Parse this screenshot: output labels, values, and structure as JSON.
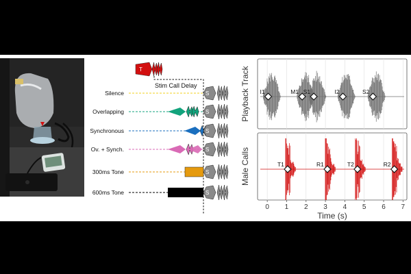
{
  "protocol": {
    "delay_label": "Stim Call Delay",
    "stimulus_mark": "S",
    "conditions": [
      {
        "label": "Silence",
        "color": "#f2d01c",
        "shape": "none"
      },
      {
        "label": "Overlapping",
        "color": "#12a37c",
        "shape": "call-early"
      },
      {
        "label": "Synchronous",
        "color": "#1a6fbf",
        "shape": "call-sync"
      },
      {
        "label": "Ov. + Synch.",
        "color": "#d96ab5",
        "shape": "call-both"
      },
      {
        "label": "300ms Tone",
        "color": "#e59a0e",
        "shape": "tone-300"
      },
      {
        "label": "600ms Tone",
        "color": "#000000",
        "shape": "tone-600"
      }
    ]
  },
  "chart_data": [
    {
      "type": "line",
      "ylabel": "Playback Track",
      "color": "#707070",
      "xlim": [
        -0.5,
        7.2
      ],
      "grid": true,
      "markers": [
        {
          "label": "I1",
          "x": 0.05
        },
        {
          "label": "M1",
          "x": 1.8
        },
        {
          "label": "S1",
          "x": 2.4
        },
        {
          "label": "I2",
          "x": 3.9
        },
        {
          "label": "S2",
          "x": 5.45
        }
      ]
    },
    {
      "type": "line",
      "ylabel": "Male Calls",
      "xlabel": "Time (s)",
      "color": "#d20f0f",
      "xlim": [
        -0.5,
        7.2
      ],
      "xticks": [
        "0",
        "1",
        "2",
        "3",
        "4",
        "5",
        "6",
        "7"
      ],
      "grid": true,
      "markers": [
        {
          "label": "T1",
          "x": 1.05
        },
        {
          "label": "R1",
          "x": 3.1
        },
        {
          "label": "T2",
          "x": 4.65
        },
        {
          "label": "R2",
          "x": 6.55
        }
      ]
    }
  ]
}
